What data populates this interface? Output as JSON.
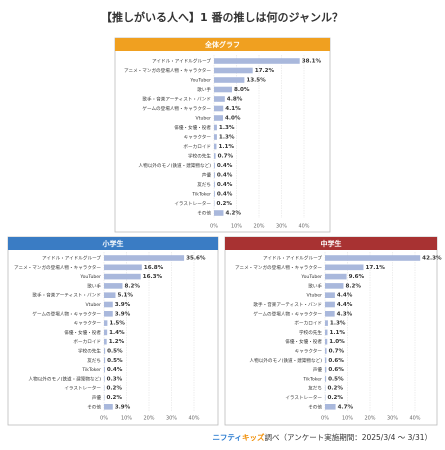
{
  "title": "【推しがいる人へ】1 番の推しは何のジャンル？",
  "footer": {
    "brand_a": "ニフティ",
    "brand_b": "キッズ",
    "text": "調べ（アンケート実施期間：2025/3/4 ～ 3/31）"
  },
  "chart_data": [
    {
      "type": "bar",
      "orientation": "horizontal",
      "title": "全体グラフ",
      "header_color": "#f0a020",
      "color": "#a9b8dc",
      "grid": true,
      "categories": [
        "アイドル・アイドルグループ",
        "アニメ・マンガの登場人物・キャラクター",
        "YouTuber",
        "歌い手",
        "歌手・音楽アーティスト・バンド",
        "ゲームの登場人物・キャラクター",
        "Vtuber",
        "俳優・女優・役者",
        "キャラクター",
        "ボーカロイド",
        "学校の先生",
        "人物以外のモノ(鉄道・建築物など)",
        "声優",
        "友だち",
        "TikToker",
        "イラストレーター",
        "その他"
      ],
      "values": [
        38.1,
        17.2,
        13.5,
        8.0,
        4.8,
        4.1,
        4.0,
        1.3,
        1.3,
        1.1,
        0.7,
        0.4,
        0.4,
        0.4,
        0.4,
        0.2,
        4.2
      ],
      "value_labels": [
        "38.1%",
        "17.2%",
        "13.5%",
        "8.0%",
        "4.8%",
        "4.1%",
        "4.0%",
        "1.3%",
        "1.3%",
        "1.1%",
        "0.7%",
        "0.4%",
        "0.4%",
        "0.4%",
        "0.4%",
        "0.2%",
        "4.2%"
      ],
      "xlim": [
        0,
        45
      ],
      "xticks": [
        {
          "value": 0,
          "label": "0%"
        },
        {
          "value": 10,
          "label": "10%"
        },
        {
          "value": 20,
          "label": "20%"
        },
        {
          "value": 30,
          "label": "30%"
        },
        {
          "value": 40,
          "label": "40%"
        }
      ]
    },
    {
      "type": "bar",
      "orientation": "horizontal",
      "title": "小学生",
      "header_color": "#3a7cc4",
      "color": "#a9b8dc",
      "grid": true,
      "categories": [
        "アイドル・アイドルグループ",
        "アニメ・マンガの登場人物・キャラクター",
        "YouTuber",
        "歌い手",
        "歌手・音楽アーティスト・バンド",
        "Vtuber",
        "ゲームの登場人物・キャラクター",
        "キャラクター",
        "俳優・女優・役者",
        "ボーカロイド",
        "学校の先生",
        "友だち",
        "TikToker",
        "人物以外のモノ(鉄道・建築物など)",
        "イラストレーター",
        "声優",
        "その他"
      ],
      "values": [
        35.6,
        16.8,
        16.3,
        8.2,
        5.1,
        3.9,
        3.9,
        1.5,
        1.4,
        1.2,
        0.5,
        0.5,
        0.4,
        0.3,
        0.2,
        0.2,
        3.9
      ],
      "value_labels": [
        "35.6%",
        "16.8%",
        "16.3%",
        "8.2%",
        "5.1%",
        "3.9%",
        "3.9%",
        "1.5%",
        "1.4%",
        "1.2%",
        "0.5%",
        "0.5%",
        "0.4%",
        "0.3%",
        "0.2%",
        "0.2%",
        "3.9%"
      ],
      "xlim": [
        0,
        45
      ],
      "xticks": [
        {
          "value": 0,
          "label": "0%"
        },
        {
          "value": 10,
          "label": "10%"
        },
        {
          "value": 20,
          "label": "20%"
        },
        {
          "value": 30,
          "label": "30%"
        },
        {
          "value": 40,
          "label": "40%"
        }
      ]
    },
    {
      "type": "bar",
      "orientation": "horizontal",
      "title": "中学生",
      "header_color": "#a83232",
      "color": "#a9b8dc",
      "grid": true,
      "categories": [
        "アイドル・アイドルグループ",
        "アニメ・マンガの登場人物・キャラクター",
        "YouTuber",
        "歌い手",
        "Vtuber",
        "歌手・音楽アーティスト・バンド",
        "ゲームの登場人物・キャラクター",
        "ボーカロイド",
        "学校の先生",
        "俳優・女優・役者",
        "キャラクター",
        "人物以外のモノ(鉄道・建築物など)",
        "声優",
        "TikToker",
        "友だち",
        "イラストレーター",
        "その他"
      ],
      "values": [
        42.3,
        17.1,
        9.6,
        8.2,
        4.4,
        4.4,
        4.3,
        1.3,
        1.1,
        1.0,
        0.7,
        0.6,
        0.6,
        0.5,
        0.2,
        0.2,
        4.7
      ],
      "value_labels": [
        "42.3%",
        "17.1%",
        "9.6%",
        "8.2%",
        "4.4%",
        "4.4%",
        "4.3%",
        "1.3%",
        "1.1%",
        "1.0%",
        "0.7%",
        "0.6%",
        "0.6%",
        "0.5%",
        "0.2%",
        "0.2%",
        "4.7%"
      ],
      "xlim": [
        0,
        45
      ],
      "xticks": [
        {
          "value": 0,
          "label": "0%"
        },
        {
          "value": 10,
          "label": "10%"
        },
        {
          "value": 20,
          "label": "20%"
        },
        {
          "value": 30,
          "label": "30%"
        },
        {
          "value": 40,
          "label": "40%"
        }
      ]
    }
  ]
}
